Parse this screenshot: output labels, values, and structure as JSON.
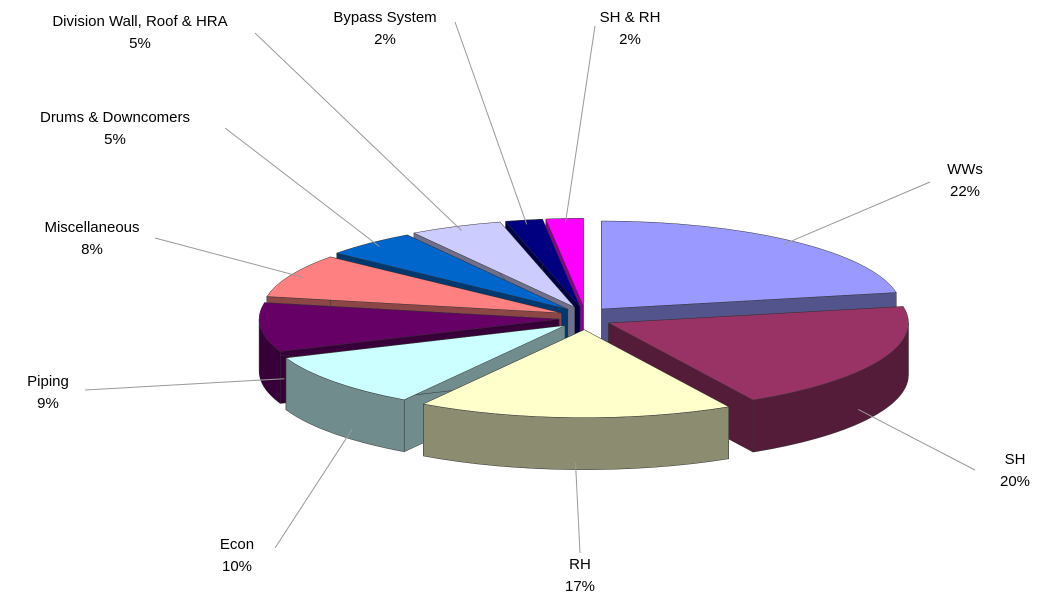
{
  "chart_data": {
    "type": "pie",
    "categories": [
      "WWs",
      "SH",
      "RH",
      "Econ",
      "Piping",
      "Miscellaneous",
      "Drums & Downcomers",
      "Division Wall, Roof & HRA",
      "Bypass System",
      "SH & RH"
    ],
    "values": [
      22,
      20,
      17,
      10,
      9,
      8,
      5,
      5,
      2,
      2
    ],
    "value_labels": [
      "22%",
      "20%",
      "17%",
      "10%",
      "9%",
      "8%",
      "5%",
      "5%",
      "2%",
      "2%"
    ],
    "colors": [
      "#9999ff",
      "#993366",
      "#ffffcc",
      "#ccffff",
      "#660066",
      "#ff8080",
      "#0066cc",
      "#ccccff",
      "#000080",
      "#ff00ff"
    ]
  }
}
